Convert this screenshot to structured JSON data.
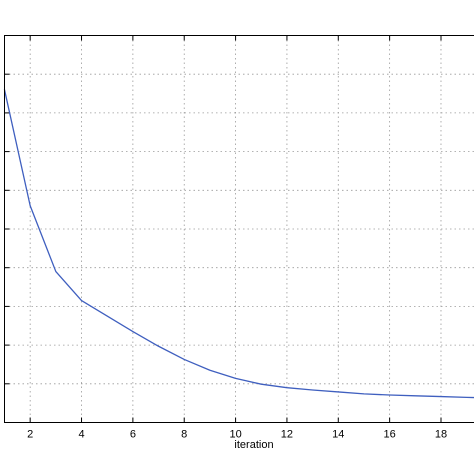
{
  "chart_data": {
    "type": "line",
    "title": "",
    "xlabel": "iteration",
    "ylabel": "",
    "xlim": [
      1,
      19.5
    ],
    "ylim": [
      0,
      10
    ],
    "x_ticks": [
      2,
      4,
      6,
      8,
      10,
      12,
      14,
      16,
      18
    ],
    "y_gridlines": [
      1,
      2,
      3,
      4,
      5,
      6,
      7,
      8,
      9
    ],
    "x_gridlines": [
      2,
      4,
      6,
      8,
      10,
      12,
      14,
      16,
      18
    ],
    "grid": true,
    "line_color": "#3f5fbf",
    "series": [
      {
        "x": [
          1,
          2,
          3,
          4,
          5,
          6,
          7,
          8,
          9,
          10,
          11,
          12,
          13,
          14,
          15,
          16,
          17,
          18,
          19,
          19.5
        ],
        "y": [
          8.6,
          5.6,
          3.9,
          3.15,
          2.75,
          2.35,
          1.97,
          1.63,
          1.35,
          1.14,
          0.99,
          0.9,
          0.84,
          0.79,
          0.74,
          0.71,
          0.69,
          0.67,
          0.65,
          0.64
        ]
      }
    ]
  }
}
